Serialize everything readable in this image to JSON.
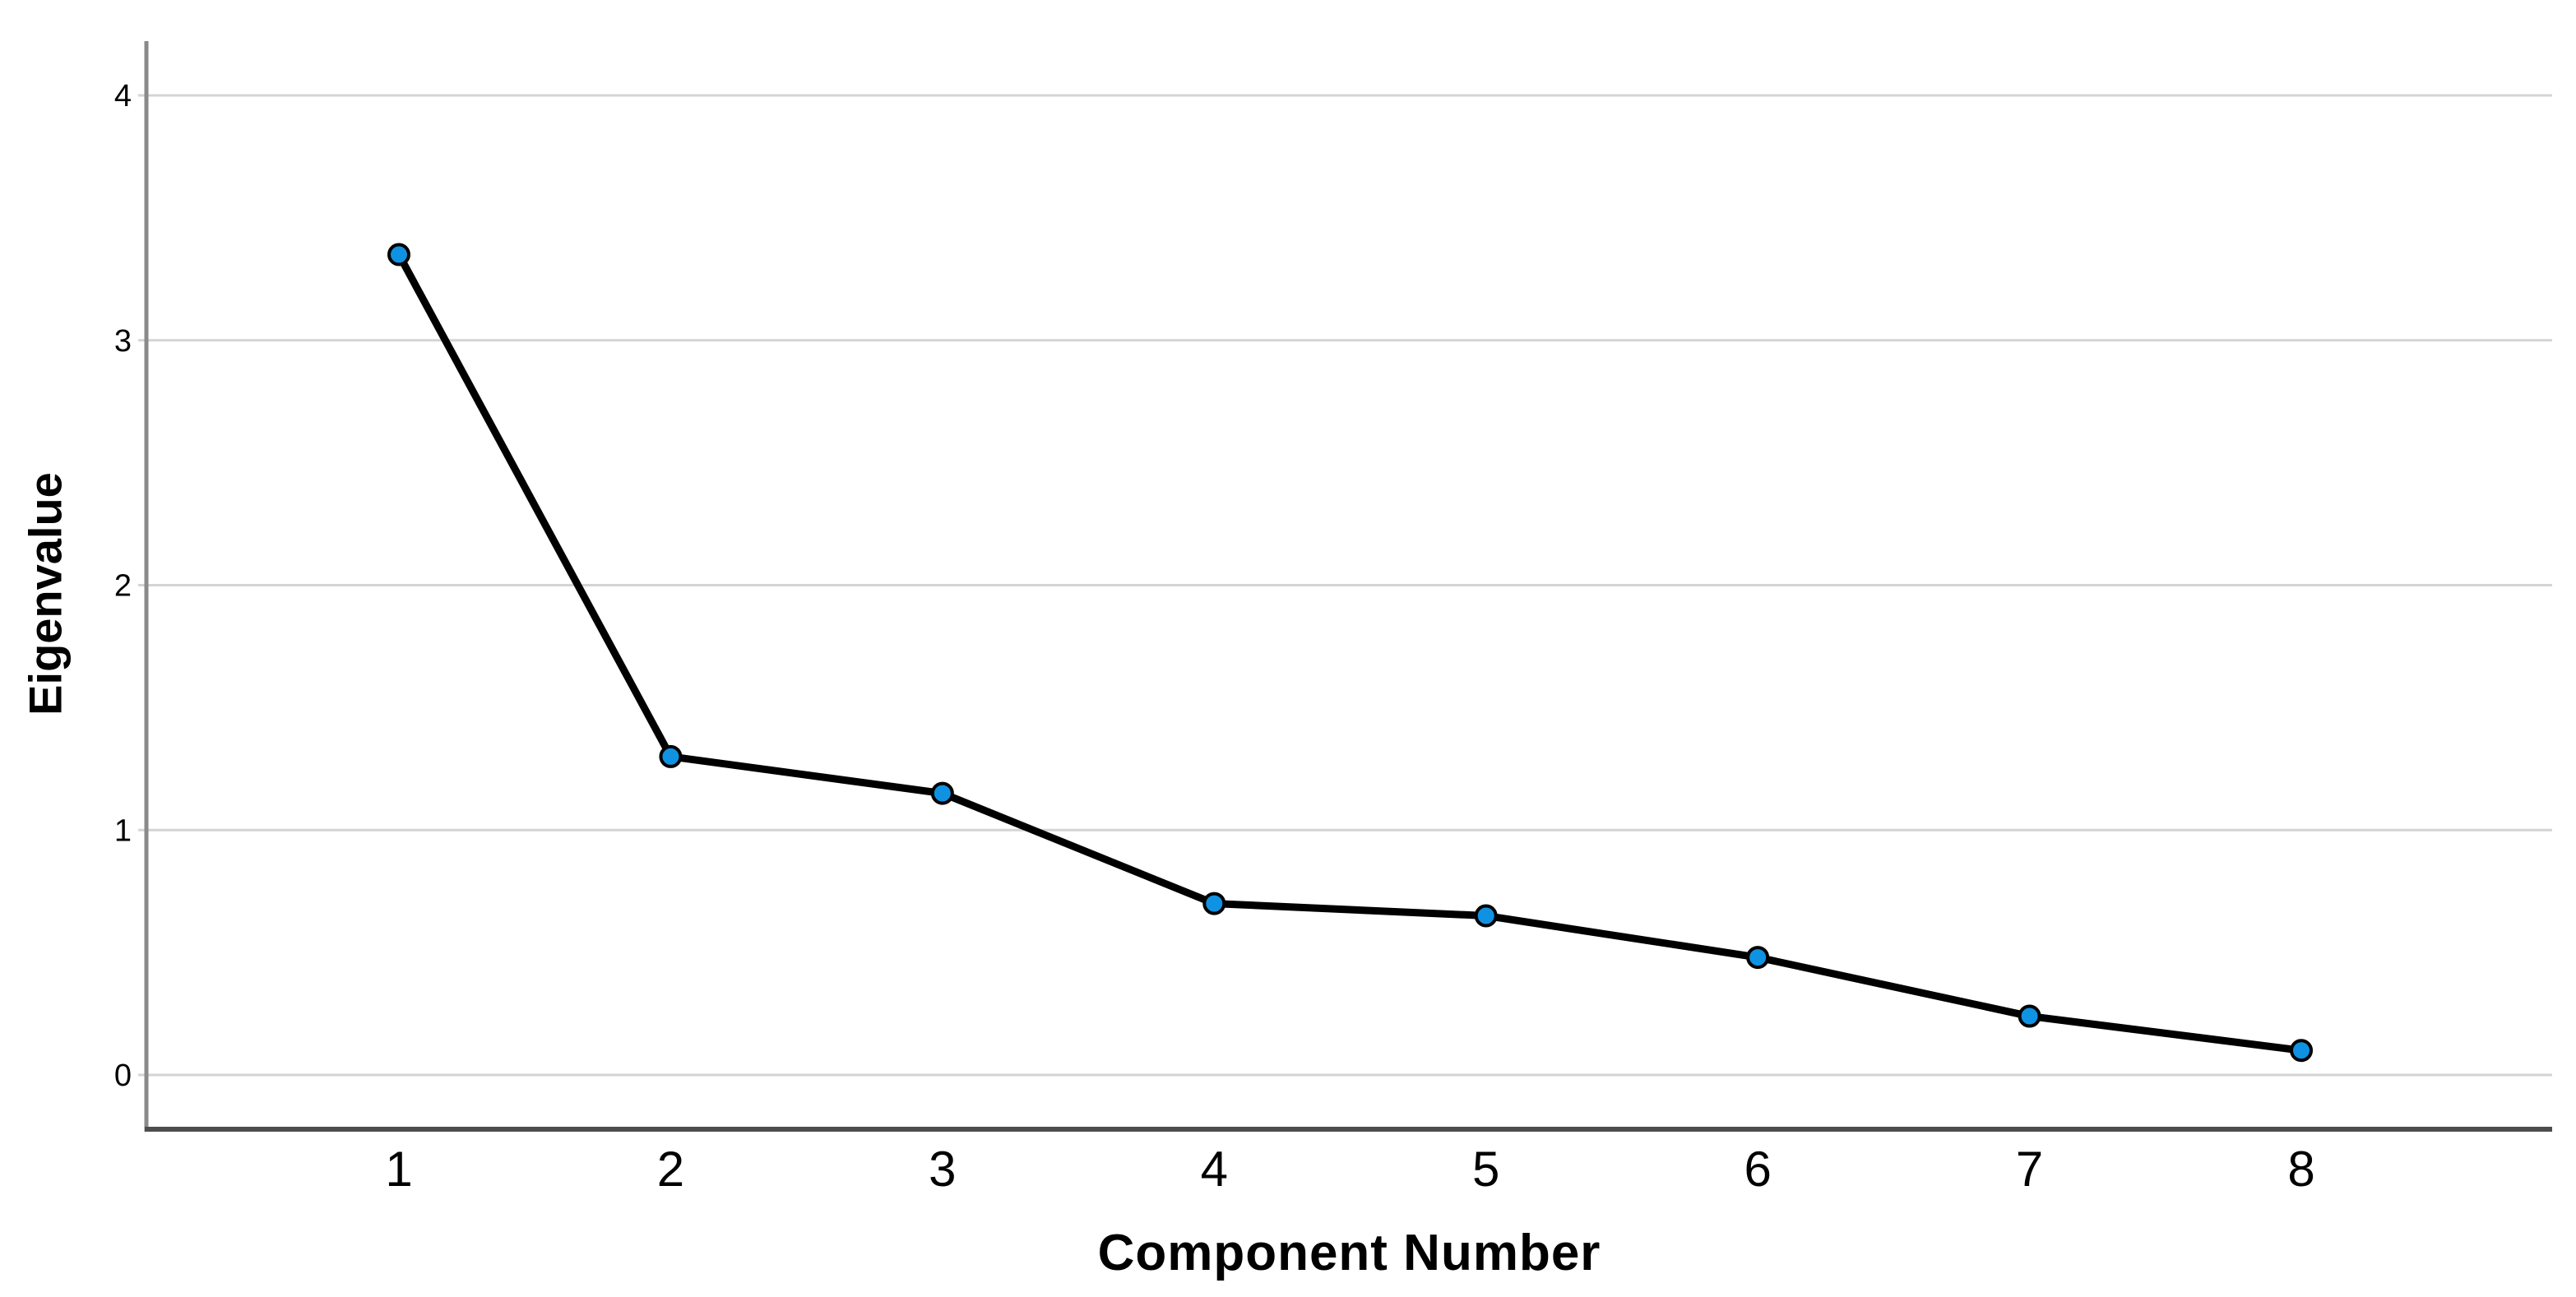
{
  "chart_data": {
    "type": "line",
    "title": "",
    "series": [
      {
        "name": "Eigenvalue",
        "values": [
          3.35,
          1.3,
          1.15,
          0.7,
          0.65,
          0.48,
          0.24,
          0.1
        ]
      }
    ],
    "x": [
      1,
      2,
      3,
      4,
      5,
      6,
      7,
      8
    ],
    "categories": [
      "1",
      "2",
      "3",
      "4",
      "5",
      "6",
      "7",
      "8"
    ],
    "xlabel": "Component Number",
    "ylabel": "Eigenvalue",
    "yticks": [
      0,
      1,
      2,
      3,
      4
    ],
    "ytick_labels": [
      "0",
      "1",
      "2",
      "3",
      "4"
    ],
    "ylim": [
      -0.22,
      4.22
    ],
    "xlim": [
      0.07,
      8.93
    ],
    "grid": "horizontal-only",
    "legend_position": "none",
    "colors": {
      "marker_fill": "#1092E3",
      "marker_outline": "#000000",
      "line": "#000000",
      "gridline": "#D4D4D4",
      "y_axis_line": "#8A8A8A",
      "x_axis_line": "#4D4D4D",
      "background": "#FFFFFF",
      "text": "#000000"
    }
  }
}
